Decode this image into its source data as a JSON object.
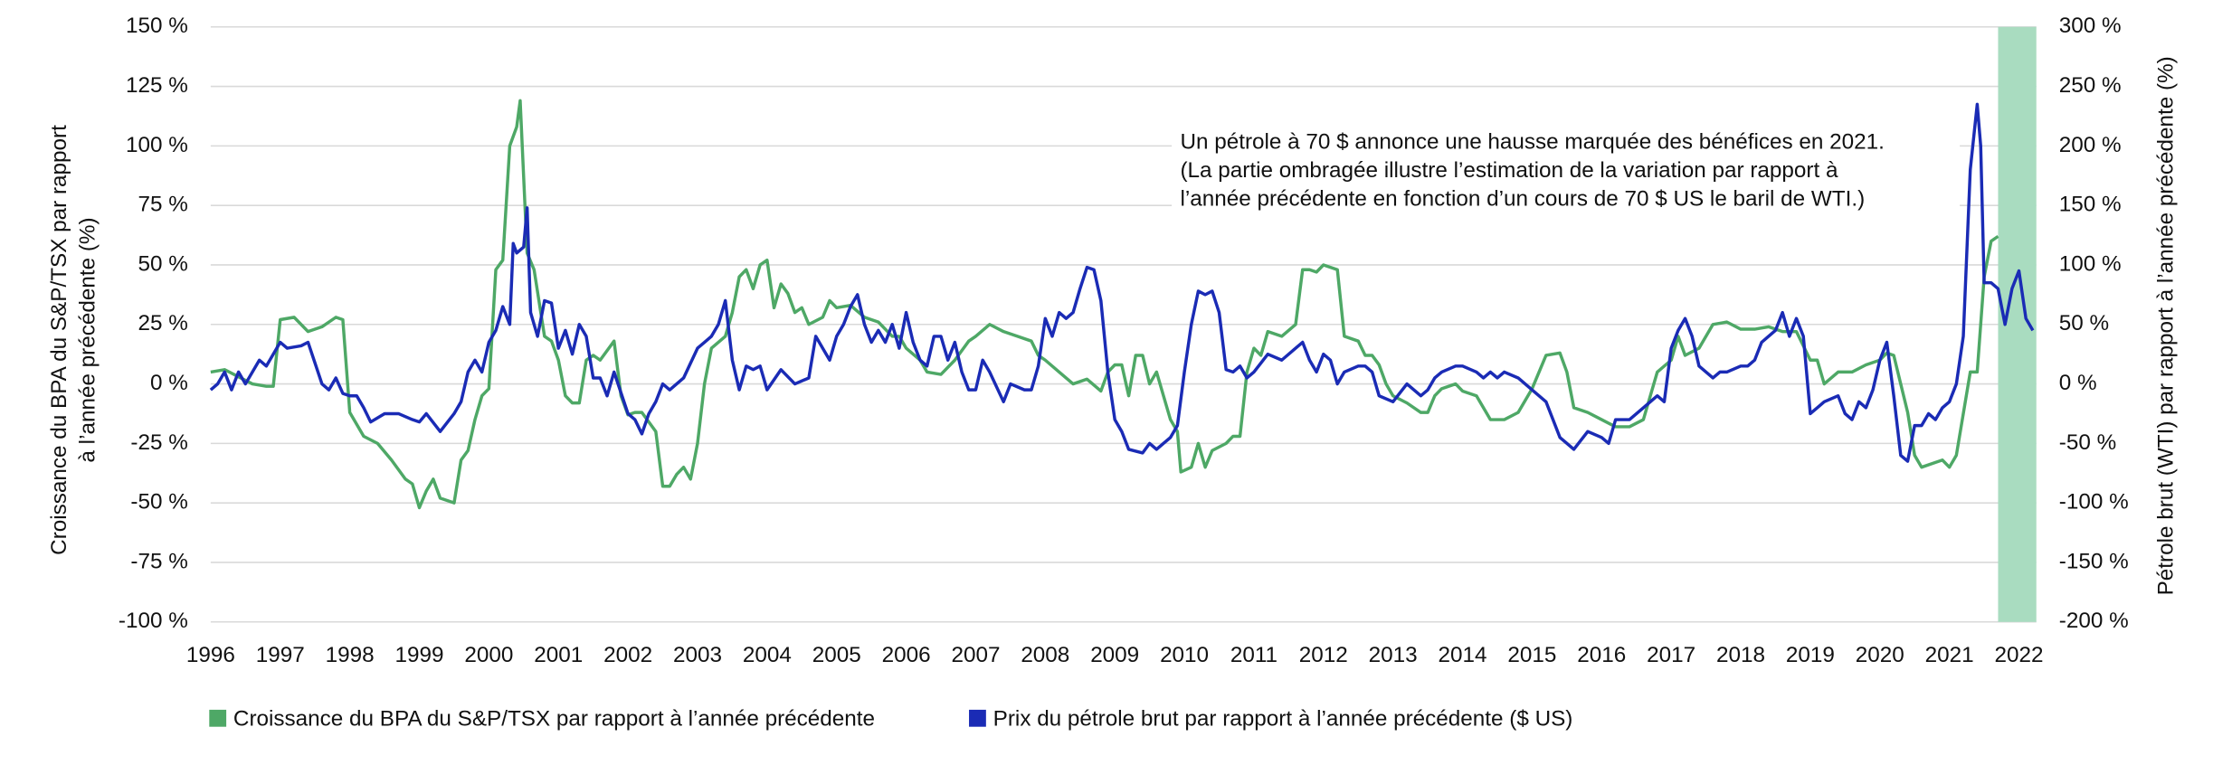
{
  "chart_data": {
    "type": "line",
    "y_label_lines": [
      "Croissance du BPA du S&P/TSX par rapport",
      "à l’année précédente (%)"
    ],
    "y2_label": "Pétrole brut (WTI) par rapport à l’année précédente (%)",
    "annotation_lines": [
      "Un pétrole à 70 $ annonce une hausse marquée des bénéfices en 2021.",
      "(La partie ombragée illustre l’estimation de la variation par rapport à",
      "l’année précédente en fonction d’un cours de 70 $ US le baril de WTI.)"
    ],
    "xlim": [
      1996,
      2022.25
    ],
    "xticks": [
      1996,
      1997,
      1998,
      1999,
      2000,
      2001,
      2002,
      2003,
      2004,
      2005,
      2006,
      2007,
      2008,
      2009,
      2010,
      2011,
      2012,
      2013,
      2014,
      2015,
      2016,
      2017,
      2018,
      2019,
      2020,
      2021,
      2022
    ],
    "ylim": [
      -100,
      150
    ],
    "yticks": [
      {
        "value": -100,
        "label": "-100 %"
      },
      {
        "value": -75,
        "label": "-75 %"
      },
      {
        "value": -50,
        "label": "-50 %"
      },
      {
        "value": -25,
        "label": "-25 %"
      },
      {
        "value": 0,
        "label": "0 %"
      },
      {
        "value": 25,
        "label": "25 %"
      },
      {
        "value": 50,
        "label": "50 %"
      },
      {
        "value": 75,
        "label": "75 %"
      },
      {
        "value": 100,
        "label": "100 %"
      },
      {
        "value": 125,
        "label": "125 %"
      },
      {
        "value": 150,
        "label": "150 %"
      }
    ],
    "y2lim": [
      -200,
      300
    ],
    "y2ticks": [
      {
        "value": -200,
        "label": "-200 %"
      },
      {
        "value": -150,
        "label": "-150 %"
      },
      {
        "value": -100,
        "label": "-100 %"
      },
      {
        "value": -50,
        "label": "-50 %"
      },
      {
        "value": 0,
        "label": "0 %"
      },
      {
        "value": 50,
        "label": "50 %"
      },
      {
        "value": 100,
        "label": "100 %"
      },
      {
        "value": 150,
        "label": "150 %"
      },
      {
        "value": 200,
        "label": "200 %"
      },
      {
        "value": 250,
        "label": "250 %"
      },
      {
        "value": 300,
        "label": "300 %"
      }
    ],
    "grid": true,
    "shaded_region": {
      "x": [
        2021.7,
        2022.25
      ],
      "color": "#a9dcc0"
    },
    "series": [
      {
        "name": "Croissance du BPA du S&P/TSX par rapport à l’année précédente",
        "color": "#4ea866",
        "axis": "y",
        "x": [
          1996.0,
          1996.2,
          1996.4,
          1996.6,
          1996.8,
          1996.9,
          1997.0,
          1997.2,
          1997.4,
          1997.6,
          1997.8,
          1997.9,
          1998.0,
          1998.2,
          1998.4,
          1998.6,
          1998.8,
          1998.9,
          1999.0,
          1999.1,
          1999.2,
          1999.3,
          1999.5,
          1999.6,
          1999.7,
          1999.8,
          1999.9,
          2000.0,
          2000.1,
          2000.2,
          2000.3,
          2000.4,
          2000.45,
          2000.55,
          2000.65,
          2000.8,
          2000.9,
          2001.0,
          2001.1,
          2001.2,
          2001.3,
          2001.4,
          2001.5,
          2001.6,
          2001.8,
          2001.9,
          2002.0,
          2002.1,
          2002.2,
          2002.4,
          2002.5,
          2002.6,
          2002.7,
          2002.8,
          2002.9,
          2003.0,
          2003.1,
          2003.2,
          2003.4,
          2003.5,
          2003.6,
          2003.7,
          2003.8,
          2003.9,
          2004.0,
          2004.1,
          2004.2,
          2004.3,
          2004.4,
          2004.5,
          2004.6,
          2004.8,
          2004.9,
          2005.0,
          2005.2,
          2005.4,
          2005.6,
          2005.8,
          2005.9,
          2006.0,
          2006.2,
          2006.3,
          2006.5,
          2006.7,
          2006.9,
          2007.0,
          2007.2,
          2007.4,
          2007.6,
          2007.8,
          2007.9,
          2008.0,
          2008.2,
          2008.4,
          2008.6,
          2008.8,
          2008.9,
          2009.0,
          2009.1,
          2009.2,
          2009.3,
          2009.4,
          2009.5,
          2009.6,
          2009.7,
          2009.8,
          2009.9,
          2009.95,
          2010.1,
          2010.2,
          2010.3,
          2010.4,
          2010.6,
          2010.7,
          2010.8,
          2010.9,
          2011.0,
          2011.1,
          2011.2,
          2011.4,
          2011.6,
          2011.7,
          2011.8,
          2011.9,
          2012.0,
          2012.2,
          2012.3,
          2012.5,
          2012.6,
          2012.7,
          2012.8,
          2012.9,
          2013.0,
          2013.2,
          2013.4,
          2013.5,
          2013.6,
          2013.7,
          2013.9,
          2014.0,
          2014.2,
          2014.4,
          2014.6,
          2014.8,
          2015.0,
          2015.1,
          2015.2,
          2015.4,
          2015.5,
          2015.6,
          2015.8,
          2016.0,
          2016.2,
          2016.4,
          2016.6,
          2016.8,
          2017.0,
          2017.1,
          2017.2,
          2017.4,
          2017.6,
          2017.8,
          2018.0,
          2018.2,
          2018.4,
          2018.6,
          2018.8,
          2019.0,
          2019.1,
          2019.2,
          2019.4,
          2019.6,
          2019.8,
          2020.0,
          2020.1,
          2020.2,
          2020.3,
          2020.4,
          2020.5,
          2020.6,
          2020.8,
          2020.9,
          2021.0,
          2021.1,
          2021.3,
          2021.4,
          2021.5,
          2021.6,
          2021.7
        ],
        "values": [
          5,
          6,
          3,
          0,
          -1,
          -1,
          27,
          28,
          22,
          24,
          28,
          27,
          -12,
          -22,
          -25,
          -32,
          -40,
          -42,
          -52,
          -45,
          -40,
          -48,
          -50,
          -32,
          -28,
          -15,
          -5,
          -2,
          48,
          52,
          100,
          108,
          119,
          55,
          48,
          20,
          18,
          10,
          -5,
          -8,
          -8,
          10,
          12,
          10,
          18,
          -5,
          -13,
          -12,
          -12,
          -20,
          -43,
          -43,
          -38,
          -35,
          -40,
          -25,
          0,
          15,
          20,
          30,
          45,
          48,
          40,
          50,
          52,
          32,
          42,
          38,
          30,
          32,
          25,
          28,
          35,
          32,
          33,
          28,
          26,
          20,
          20,
          15,
          10,
          5,
          4,
          10,
          18,
          20,
          25,
          22,
          20,
          18,
          12,
          10,
          5,
          0,
          2,
          -3,
          5,
          8,
          8,
          -5,
          12,
          12,
          0,
          5,
          -5,
          -15,
          -20,
          -37,
          -35,
          -25,
          -35,
          -28,
          -25,
          -22,
          -22,
          5,
          15,
          12,
          22,
          20,
          25,
          48,
          48,
          47,
          50,
          48,
          20,
          18,
          12,
          12,
          8,
          0,
          -5,
          -8,
          -12,
          -12,
          -5,
          -2,
          0,
          -3,
          -5,
          -15,
          -15,
          -12,
          -2,
          5,
          12,
          13,
          5,
          -10,
          -12,
          -15,
          -18,
          -18,
          -15,
          5,
          10,
          20,
          12,
          15,
          25,
          26,
          23,
          23,
          24,
          22,
          22,
          10,
          10,
          0,
          5,
          5,
          8,
          10,
          13,
          12,
          0,
          -12,
          -30,
          -35,
          -33,
          -32,
          -35,
          -30,
          5,
          5,
          45,
          60,
          62
        ]
      },
      {
        "name": "Prix du pétrole brut par rapport à l’année précédente ($ US)",
        "color": "#1a2bb5",
        "axis": "y2",
        "x": [
          1996.0,
          1996.1,
          1996.2,
          1996.3,
          1996.4,
          1996.5,
          1996.7,
          1996.8,
          1997.0,
          1997.1,
          1997.3,
          1997.4,
          1997.6,
          1997.7,
          1997.8,
          1997.9,
          1998.0,
          1998.1,
          1998.2,
          1998.3,
          1998.5,
          1998.7,
          1998.9,
          1999.0,
          1999.1,
          1999.3,
          1999.5,
          1999.6,
          1999.7,
          1999.8,
          1999.9,
          2000.0,
          2000.1,
          2000.2,
          2000.3,
          2000.35,
          2000.4,
          2000.5,
          2000.55,
          2000.6,
          2000.7,
          2000.8,
          2000.9,
          2001.0,
          2001.1,
          2001.2,
          2001.3,
          2001.4,
          2001.5,
          2001.6,
          2001.7,
          2001.8,
          2002.0,
          2002.1,
          2002.2,
          2002.3,
          2002.4,
          2002.5,
          2002.6,
          2002.7,
          2002.8,
          2003.0,
          2003.1,
          2003.2,
          2003.3,
          2003.4,
          2003.5,
          2003.6,
          2003.7,
          2003.8,
          2003.9,
          2004.0,
          2004.2,
          2004.4,
          2004.6,
          2004.7,
          2004.8,
          2004.9,
          2005.0,
          2005.1,
          2005.2,
          2005.3,
          2005.4,
          2005.5,
          2005.6,
          2005.7,
          2005.8,
          2005.9,
          2006.0,
          2006.1,
          2006.2,
          2006.3,
          2006.4,
          2006.5,
          2006.6,
          2006.7,
          2006.8,
          2006.9,
          2007.0,
          2007.1,
          2007.2,
          2007.4,
          2007.5,
          2007.7,
          2007.8,
          2007.9,
          2008.0,
          2008.1,
          2008.2,
          2008.3,
          2008.4,
          2008.5,
          2008.6,
          2008.7,
          2008.8,
          2008.9,
          2009.0,
          2009.1,
          2009.2,
          2009.4,
          2009.5,
          2009.6,
          2009.7,
          2009.8,
          2009.9,
          2010.0,
          2010.1,
          2010.2,
          2010.3,
          2010.4,
          2010.5,
          2010.6,
          2010.7,
          2010.8,
          2010.9,
          2011.0,
          2011.2,
          2011.4,
          2011.6,
          2011.7,
          2011.8,
          2011.9,
          2012.0,
          2012.1,
          2012.2,
          2012.3,
          2012.5,
          2012.6,
          2012.7,
          2012.8,
          2013.0,
          2013.2,
          2013.4,
          2013.5,
          2013.6,
          2013.7,
          2013.9,
          2014.0,
          2014.2,
          2014.3,
          2014.4,
          2014.5,
          2014.6,
          2014.8,
          2015.0,
          2015.2,
          2015.3,
          2015.4,
          2015.5,
          2015.6,
          2015.8,
          2016.0,
          2016.1,
          2016.2,
          2016.4,
          2016.6,
          2016.8,
          2016.9,
          2017.0,
          2017.1,
          2017.2,
          2017.3,
          2017.4,
          2017.6,
          2017.7,
          2017.8,
          2018.0,
          2018.1,
          2018.2,
          2018.3,
          2018.4,
          2018.5,
          2018.6,
          2018.7,
          2018.8,
          2018.9,
          2019.0,
          2019.1,
          2019.2,
          2019.4,
          2019.5,
          2019.6,
          2019.7,
          2019.8,
          2019.9,
          2020.0,
          2020.1,
          2020.2,
          2020.3,
          2020.4,
          2020.5,
          2020.6,
          2020.7,
          2020.8,
          2020.9,
          2021.0,
          2021.1,
          2021.2,
          2021.3,
          2021.4,
          2021.45,
          2021.5,
          2021.6,
          2021.7,
          2021.8,
          2021.9,
          2022.0,
          2022.1,
          2022.2
        ],
        "values": [
          -5,
          0,
          10,
          -5,
          10,
          0,
          20,
          15,
          35,
          30,
          32,
          35,
          0,
          -5,
          5,
          -8,
          -10,
          -10,
          -20,
          -32,
          -25,
          -25,
          -30,
          -32,
          -25,
          -40,
          -25,
          -15,
          10,
          20,
          10,
          35,
          45,
          65,
          50,
          118,
          110,
          115,
          148,
          60,
          40,
          70,
          68,
          30,
          45,
          25,
          50,
          40,
          5,
          5,
          -10,
          10,
          -25,
          -30,
          -42,
          -25,
          -15,
          0,
          -5,
          0,
          5,
          30,
          35,
          40,
          50,
          70,
          20,
          -5,
          15,
          12,
          15,
          -5,
          12,
          0,
          5,
          40,
          30,
          20,
          40,
          50,
          65,
          75,
          50,
          35,
          45,
          35,
          50,
          30,
          60,
          35,
          20,
          15,
          40,
          40,
          20,
          35,
          10,
          -5,
          -5,
          20,
          10,
          -15,
          0,
          -5,
          -5,
          15,
          55,
          40,
          60,
          55,
          60,
          80,
          98,
          96,
          70,
          10,
          -30,
          -40,
          -55,
          -58,
          -50,
          -55,
          -50,
          -45,
          -35,
          10,
          50,
          78,
          75,
          78,
          60,
          12,
          10,
          15,
          5,
          10,
          25,
          20,
          30,
          35,
          20,
          10,
          25,
          20,
          0,
          10,
          15,
          15,
          10,
          -10,
          -15,
          0,
          -10,
          -5,
          5,
          10,
          15,
          15,
          10,
          5,
          10,
          5,
          10,
          5,
          -5,
          -15,
          -30,
          -45,
          -50,
          -55,
          -40,
          -45,
          -50,
          -30,
          -30,
          -20,
          -10,
          -15,
          30,
          45,
          55,
          40,
          15,
          5,
          10,
          10,
          15,
          15,
          20,
          35,
          40,
          45,
          60,
          40,
          55,
          40,
          -25,
          -20,
          -15,
          -10,
          -25,
          -30,
          -15,
          -20,
          -5,
          20,
          35,
          -10,
          -60,
          -65,
          -35,
          -35,
          -25,
          -30,
          -20,
          -15,
          0,
          40,
          180,
          235,
          200,
          85,
          85,
          80,
          50,
          80,
          95,
          55,
          45
        ]
      }
    ]
  }
}
